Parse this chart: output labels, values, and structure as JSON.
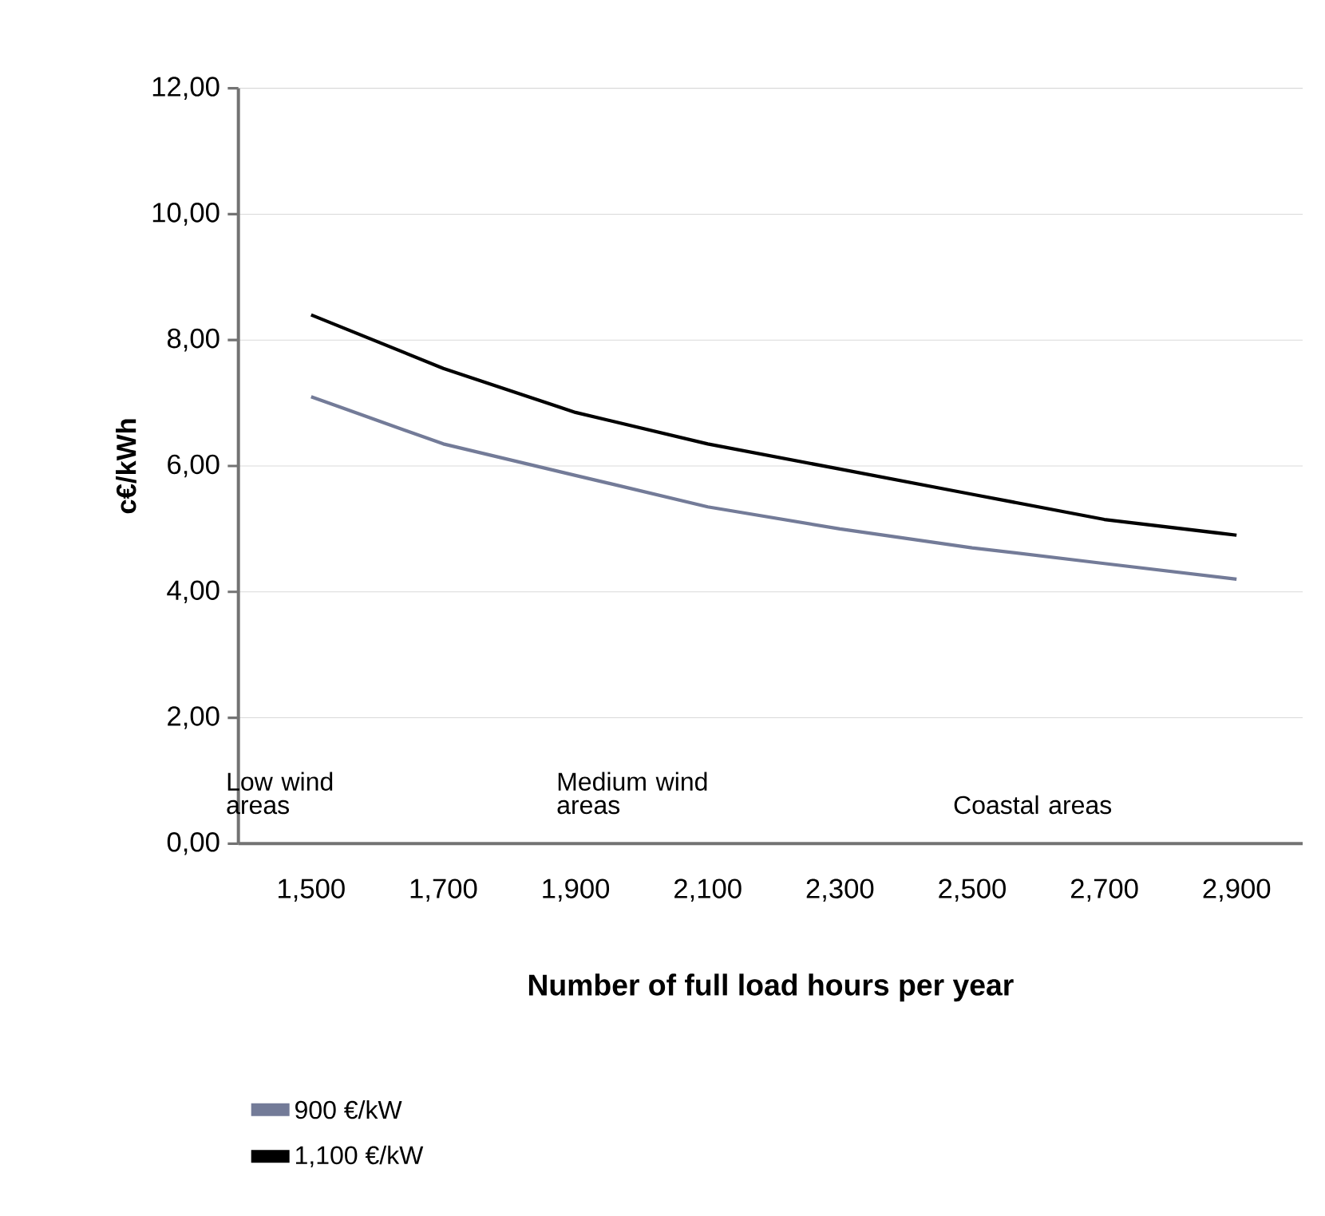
{
  "chart_data": {
    "type": "line",
    "xlabel": "Number of full load hours per year",
    "ylabel": "c€/kWh",
    "categories": [
      "1,500",
      "1,700",
      "1,900",
      "2,100",
      "2,300",
      "2,500",
      "2,700",
      "2,900"
    ],
    "series": [
      {
        "name": "900 €/kW",
        "color": "#737b98",
        "values": [
          7.1,
          6.35,
          5.85,
          5.35,
          5.0,
          4.7,
          4.45,
          4.2
        ]
      },
      {
        "name": "1,100 €/kW",
        "color": "#000000",
        "values": [
          8.4,
          7.55,
          6.85,
          6.35,
          5.95,
          5.55,
          5.15,
          4.9
        ]
      }
    ],
    "ylim": [
      0,
      12
    ],
    "yticks": [
      {
        "value": 0,
        "label": "0,00"
      },
      {
        "value": 2,
        "label": "2,00"
      },
      {
        "value": 4,
        "label": "4,00"
      },
      {
        "value": 6,
        "label": "6,00"
      },
      {
        "value": 8,
        "label": "8,00"
      },
      {
        "value": 10,
        "label": "10,00"
      },
      {
        "value": 12,
        "label": "12,00"
      }
    ],
    "grid": "y",
    "legend": "bottom left",
    "marker": "none",
    "line_style": "solid",
    "annotations": [
      "Low wind areas",
      "Medium wind areas",
      "Coastal areas"
    ]
  }
}
